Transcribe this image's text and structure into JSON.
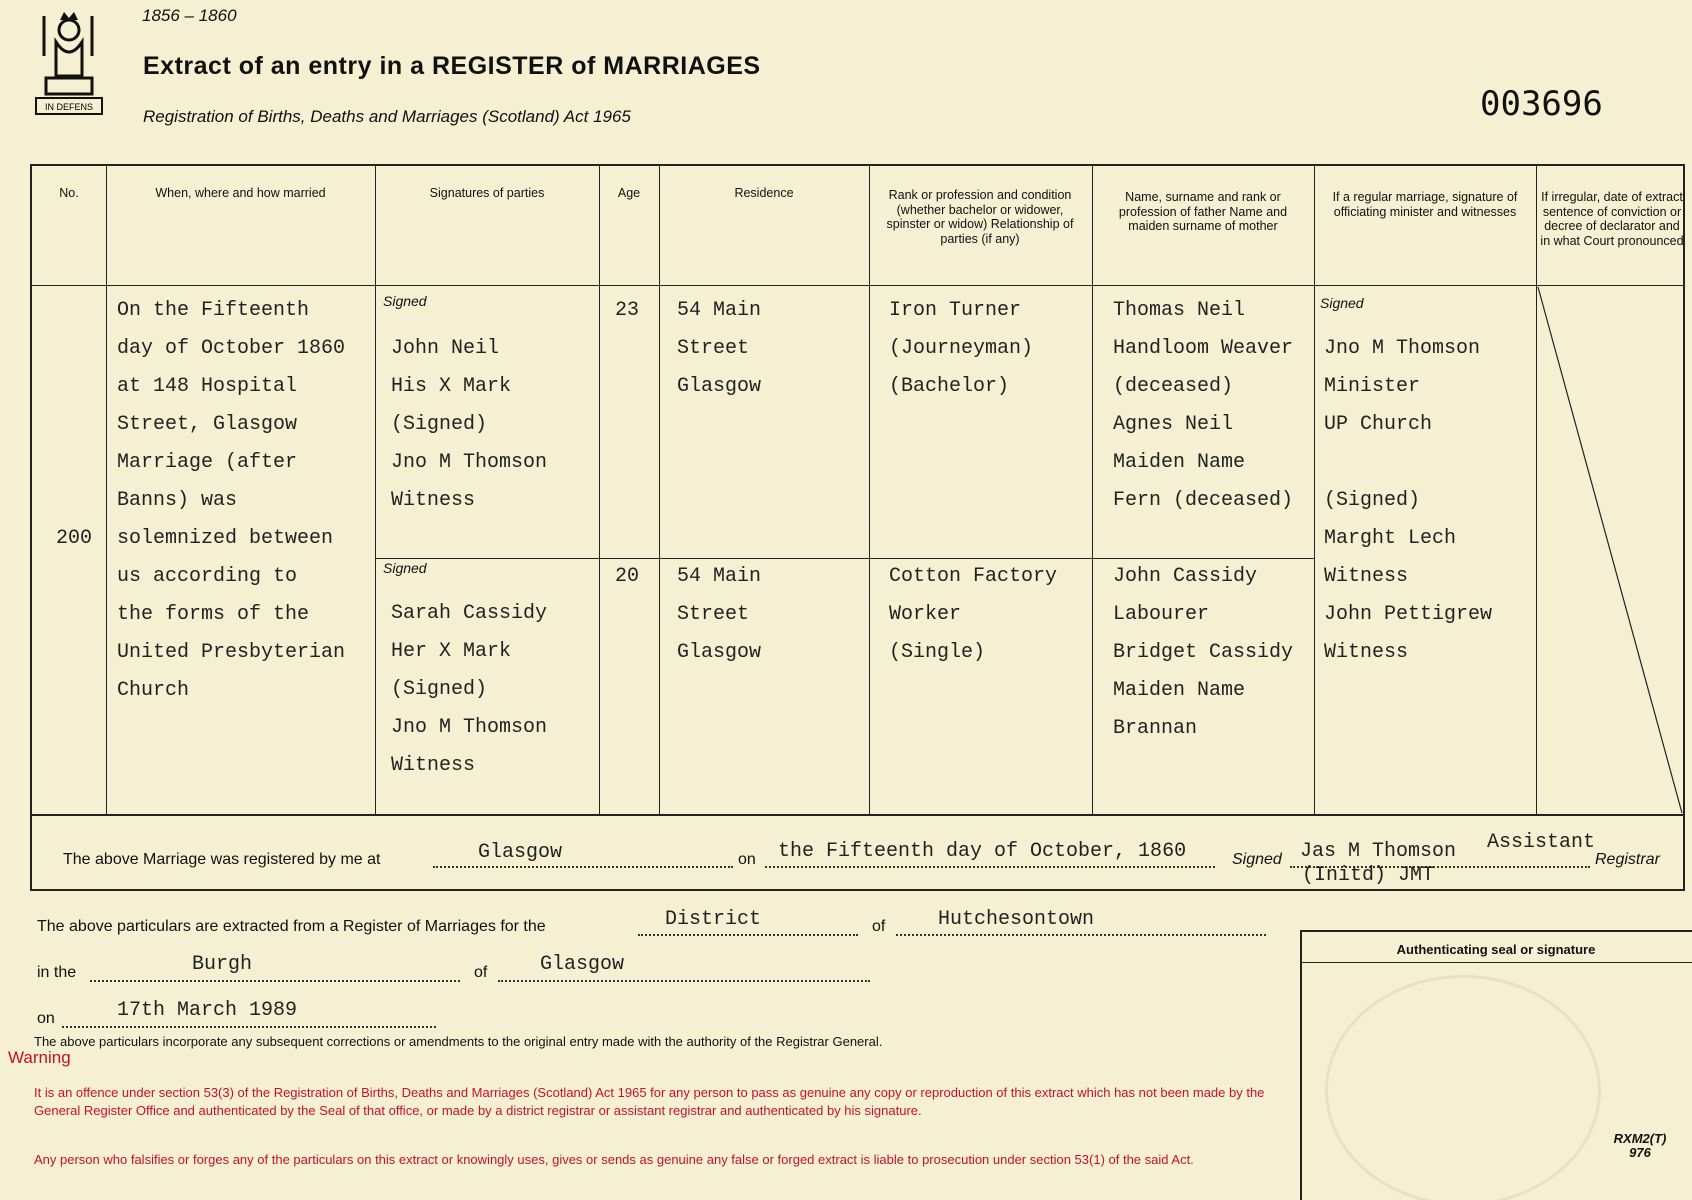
{
  "header": {
    "years": "1856 – 1860",
    "title_prefix": "Extract of an entry in a ",
    "title_strong": "REGISTER",
    "title_of": " of ",
    "title_strong2": "MARRIAGES",
    "act": "Registration of Births, Deaths and Marriages (Scotland) Act 1965",
    "serial": "003696",
    "crest_motto": "IN DEFENS"
  },
  "columns": [
    "No.",
    "When, where and how married",
    "Signatures of parties",
    "Age",
    "Residence",
    "Rank or profession and condition (whether bachelor or widower, spinster or widow) Relationship of parties (if any)",
    "Name, surname and rank or profession of father Name and maiden surname of mother",
    "If a regular marriage, signature of officiating minister and witnesses",
    "If irregular, date of extract sentence of conviction or decree of declarator and in what Court pronounced"
  ],
  "entry": {
    "no": "200",
    "when": "On the Fifteenth\nday of October 1860\nat 148 Hospital\nStreet, Glasgow\nMarriage (after\nBanns) was\nsolemnized between\nus according to\nthe forms of the\nUnited Presbyterian\nChurch",
    "signed_label": "Signed",
    "groom": {
      "signature": "John Neil\nHis X Mark\n(Signed)\nJno M Thomson\nWitness",
      "age": "23",
      "residence": "54 Main\nStreet\nGlasgow",
      "rank": "Iron Turner\n(Journeyman)\n(Bachelor)",
      "parents": "Thomas Neil\nHandloom Weaver\n(deceased)\nAgnes Neil\nMaiden Name\nFern (deceased)"
    },
    "bride": {
      "signature": "Sarah Cassidy\nHer X Mark\n(Signed)\nJno M Thomson\nWitness",
      "age": "20",
      "residence": "54 Main\nStreet\nGlasgow",
      "rank": "Cotton Factory\nWorker\n(Single)",
      "parents": "John Cassidy\nLabourer\nBridget Cassidy\nMaiden Name\nBrannan"
    },
    "officiating": "Jno M Thomson\nMinister\nUP Church\n\n(Signed)\nMarght Lech\nWitness\nJohn Pettigrew\nWitness"
  },
  "registration": {
    "prefix": "The above Marriage was registered by me at",
    "place": "Glasgow",
    "on": "on",
    "date": "the Fifteenth day of October, 1860",
    "signed": "Signed",
    "registrar": "Jas M Thomson",
    "assistant": "Assistant",
    "initd": "(Initd) JMT",
    "registrar_label": "Registrar"
  },
  "extract": {
    "line1": "The above particulars are extracted from a Register of Marriages for the",
    "district_type": "District",
    "of": "of",
    "district": "Hutchesontown",
    "in_the": "in the",
    "burgh_type": "Burgh",
    "of2": "of",
    "burgh": "Glasgow",
    "on": "on",
    "date": "17th March 1989",
    "note": "The above particulars incorporate any subsequent corrections or amendments to the original entry made with the authority of the Registrar General."
  },
  "warning": {
    "title": "Warning",
    "p1": "It is an offence under section 53(3) of the Registration of Births, Deaths and Marriages (Scotland) Act 1965 for any person to pass as genuine any copy or reproduction of this extract which has not been made by the General Register Office and authenticated by the Seal of that office, or made by a district registrar or assistant registrar and authenticated by his signature.",
    "p2": "Any person who falsifies or forges any of the particulars on this extract or knowingly uses, gives or sends as genuine any false or forged extract is liable to prosecution under section 53(1) of the said Act."
  },
  "seal": {
    "label": "Authenticating seal or signature",
    "form_code": "RXM2(T)\n976"
  },
  "colors": {
    "paper": "#f5f0d2",
    "warning_red": "#c8102e"
  }
}
